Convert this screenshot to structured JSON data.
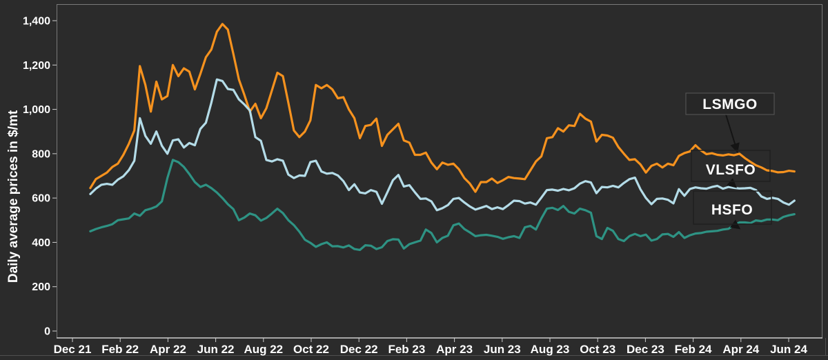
{
  "chart_data": {
    "type": "line",
    "title": "",
    "ylabel": "Daily average prices in $/mt",
    "ylim": [
      0,
      1400
    ],
    "y_ticks": [
      0,
      200,
      400,
      600,
      800,
      1000,
      1200,
      1400
    ],
    "x_axis": {
      "unit": "months since Dec 2021",
      "tick_labels": [
        "Dec 21",
        "Feb 22",
        "Apr 22",
        "Jun 22",
        "Aug 22",
        "Oct 22",
        "Dec 22",
        "Feb 23",
        "Apr 23",
        "Jun 23",
        "Aug 23",
        "Oct 23",
        "Dec 23",
        "Feb 24",
        "Apr 24",
        "Jun 24"
      ],
      "tick_month_positions": [
        0,
        2,
        4,
        6,
        8,
        10,
        12,
        14,
        16,
        18,
        20,
        22,
        24,
        26,
        28,
        30
      ]
    },
    "grid": false,
    "legend_position": "inline-annotations-right",
    "series": [
      {
        "name": "LSMGO",
        "color": "#F6921E",
        "label_color": "#F6921E",
        "start_month": 0.75,
        "month_step": 0.2304,
        "values": [
          645,
          685,
          700,
          715,
          740,
          755,
          795,
          845,
          905,
          1195,
          1110,
          990,
          1125,
          1045,
          1060,
          1200,
          1150,
          1185,
          1170,
          1090,
          1160,
          1235,
          1270,
          1350,
          1385,
          1360,
          1250,
          1135,
          1065,
          990,
          1025,
          960,
          1005,
          1085,
          1165,
          1150,
          1030,
          905,
          875,
          900,
          950,
          1110,
          1095,
          1110,
          1090,
          1050,
          1055,
          1000,
          960,
          870,
          925,
          930,
          958,
          835,
          885,
          910,
          935,
          860,
          850,
          795,
          795,
          805,
          760,
          730,
          760,
          750,
          755,
          730,
          690,
          665,
          628,
          672,
          672,
          688,
          668,
          680,
          695,
          690,
          688,
          685,
          725,
          765,
          788,
          870,
          875,
          915,
          900,
          928,
          925,
          980,
          958,
          945,
          855,
          885,
          882,
          872,
          830,
          800,
          772,
          775,
          752,
          715,
          745,
          755,
          738,
          755,
          748,
          790,
          803,
          810,
          838,
          815,
          798,
          802,
          795,
          792,
          797,
          793,
          800,
          780,
          763,
          748,
          738,
          725,
          722,
          716,
          717,
          723,
          720
        ]
      },
      {
        "name": "VLSFO",
        "color": "#B4DCE8",
        "label_color": "#9FC3E0",
        "start_month": 0.75,
        "month_step": 0.2304,
        "values": [
          618,
          642,
          660,
          664,
          660,
          683,
          698,
          726,
          768,
          960,
          880,
          845,
          900,
          836,
          800,
          860,
          865,
          828,
          848,
          838,
          912,
          940,
          1030,
          1135,
          1128,
          1092,
          1088,
          1045,
          1022,
          995,
          875,
          858,
          772,
          765,
          775,
          768,
          706,
          690,
          702,
          700,
          762,
          768,
          720,
          710,
          713,
          702,
          676,
          636,
          662,
          625,
          621,
          636,
          628,
          574,
          626,
          680,
          704,
          652,
          658,
          626,
          596,
          598,
          585,
          545,
          554,
          568,
          596,
          600,
          580,
          562,
          548,
          556,
          564,
          550,
          558,
          550,
          568,
          588,
          586,
          575,
          580,
          570,
          602,
          636,
          638,
          633,
          641,
          635,
          644,
          665,
          676,
          670,
          622,
          650,
          648,
          655,
          648,
          668,
          685,
          692,
          640,
          600,
          572,
          596,
          598,
          592,
          576,
          640,
          610,
          641,
          648,
          644,
          642,
          650,
          655,
          642,
          650,
          646,
          643,
          644,
          646,
          636,
          607,
          596,
          601,
          596,
          580,
          570,
          588
        ]
      },
      {
        "name": "HSFO",
        "color": "#2E9384",
        "label_color": "#2E9688",
        "start_month": 0.75,
        "month_step": 0.2304,
        "values": [
          450,
          460,
          468,
          474,
          482,
          500,
          504,
          508,
          530,
          520,
          545,
          552,
          562,
          585,
          690,
          772,
          762,
          740,
          708,
          672,
          650,
          660,
          645,
          625,
          600,
          572,
          550,
          500,
          512,
          530,
          522,
          498,
          510,
          530,
          552,
          532,
          500,
          478,
          448,
          412,
          398,
          380,
          392,
          400,
          382,
          383,
          377,
          386,
          370,
          366,
          387,
          385,
          370,
          378,
          406,
          414,
          413,
          372,
          392,
          400,
          408,
          458,
          442,
          400,
          420,
          430,
          477,
          485,
          460,
          445,
          428,
          432,
          434,
          430,
          425,
          416,
          423,
          428,
          420,
          468,
          474,
          458,
          508,
          552,
          556,
          546,
          564,
          538,
          530,
          552,
          545,
          534,
          428,
          415,
          465,
          452,
          415,
          406,
          428,
          438,
          428,
          435,
          408,
          415,
          436,
          438,
          425,
          446,
          420,
          432,
          440,
          442,
          448,
          450,
          452,
          458,
          461,
          478,
          490,
          490,
          487,
          499,
          496,
          503,
          503,
          500,
          515,
          522,
          527
        ]
      }
    ],
    "annotations": {
      "lsmgo_label": "LSMGO",
      "vlsfo_label": "VLSFO",
      "hsfo_label": "HSFO"
    }
  },
  "colors": {
    "background": "#2b2b2b",
    "plot_border": "#7a7a7a",
    "axis_line": "#cfcfcf",
    "tick": "#cfcfcf",
    "bottom_rule": "#4f4f4f",
    "arrow": "#141414",
    "lsmgo_box_border": "#5a5a5a",
    "other_box_border": "#1f1f1f"
  }
}
